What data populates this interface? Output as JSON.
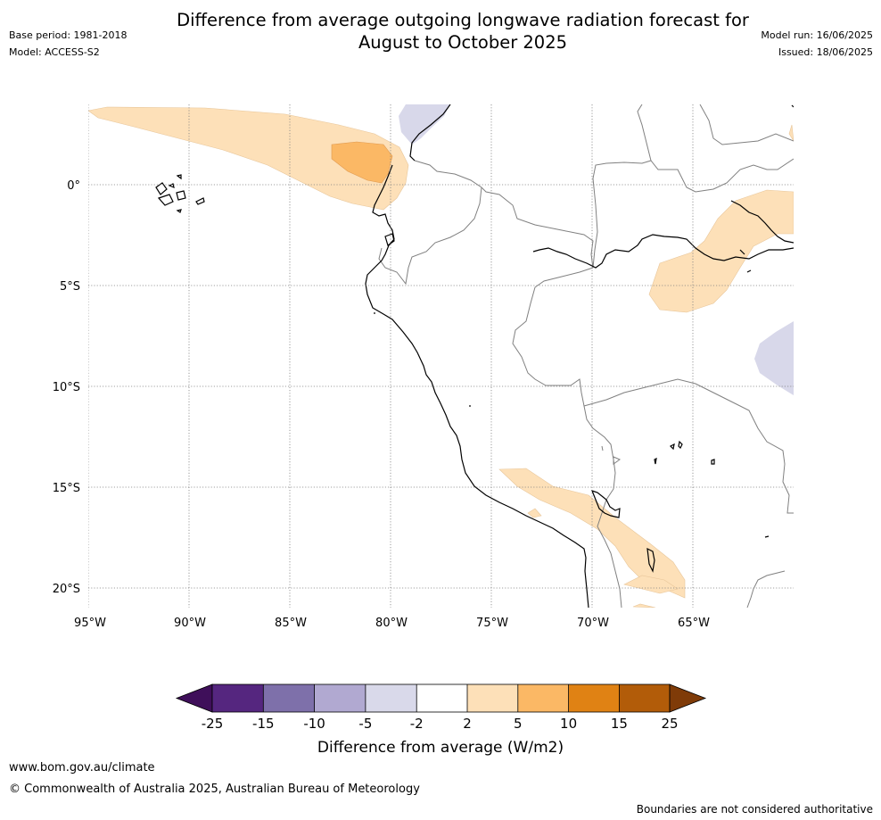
{
  "title": {
    "line1": "Difference from average outgoing longwave radiation forecast for",
    "line2": "August to October 2025"
  },
  "meta": {
    "base_period": "Base period: 1981-2018",
    "model": "Model: ACCESS-S2",
    "model_run": "Model run: 16/06/2025",
    "issued": "Issued: 18/06/2025"
  },
  "map": {
    "lat_labels": [
      "0°",
      "5°S",
      "10°S",
      "15°S",
      "20°S"
    ],
    "lon_labels": [
      "95°W",
      "90°W",
      "85°W",
      "80°W",
      "75°W",
      "70°W",
      "65°W"
    ],
    "colors": {
      "pos_2_5": "#fde0b8",
      "pos_5_10": "#fbb865",
      "neg_2_5": "#d8d8ea",
      "coast": "#000000",
      "border": "#808080",
      "grid": "#808080"
    }
  },
  "colorbar": {
    "tick_labels": [
      "-25",
      "-15",
      "-10",
      "-5",
      "-2",
      "2",
      "5",
      "10",
      "15",
      "25"
    ],
    "colors": [
      "#3f0f5a",
      "#55267f",
      "#7e70aa",
      "#b1a9d1",
      "#d9d9ea",
      "#ffffff",
      "#fde0b8",
      "#fbb865",
      "#e08214",
      "#b25c09",
      "#7f3b08"
    ],
    "title": "Difference from average (W/m2)"
  },
  "footer": {
    "url": "www.bom.gov.au/climate",
    "copyright": "© Commonwealth of Australia 2025, Australian Bureau of Meteorology",
    "disclaimer": "Boundaries are not considered authoritative"
  }
}
